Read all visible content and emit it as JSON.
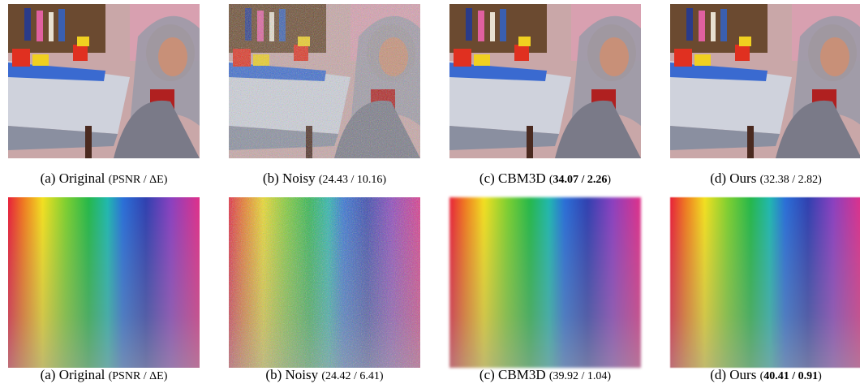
{
  "rows": [
    {
      "panels": [
        {
          "label": "(a) Original",
          "metrics": [
            {
              "text": "(PSNR / ΔE)"
            }
          ]
        },
        {
          "label": "(b) Noisy",
          "metrics": [
            {
              "text": "(24.43 / 10.16)"
            }
          ]
        },
        {
          "label": "(c) CBM3D",
          "metrics": [
            {
              "text": "("
            },
            {
              "text": "34.07 / 2.26",
              "bold": true
            },
            {
              "text": ")"
            }
          ]
        },
        {
          "label": "(d) Ours",
          "metrics": [
            {
              "text": "(32.38 / 2.82)"
            }
          ]
        }
      ]
    },
    {
      "panels": [
        {
          "label": "(a) Original",
          "metrics": [
            {
              "text": "(PSNR / ΔE)"
            }
          ]
        },
        {
          "label": "(b) Noisy",
          "metrics": [
            {
              "text": "(24.42 / 6.41)"
            }
          ]
        },
        {
          "label": "(c) CBM3D",
          "metrics": [
            {
              "text": "(39.92 / 1.04)"
            }
          ]
        },
        {
          "label": "(d) Ours",
          "metrics": [
            {
              "text": "("
            },
            {
              "text": "40.41 / 0.91",
              "bold": true
            },
            {
              "text": ")"
            }
          ]
        }
      ]
    }
  ]
}
